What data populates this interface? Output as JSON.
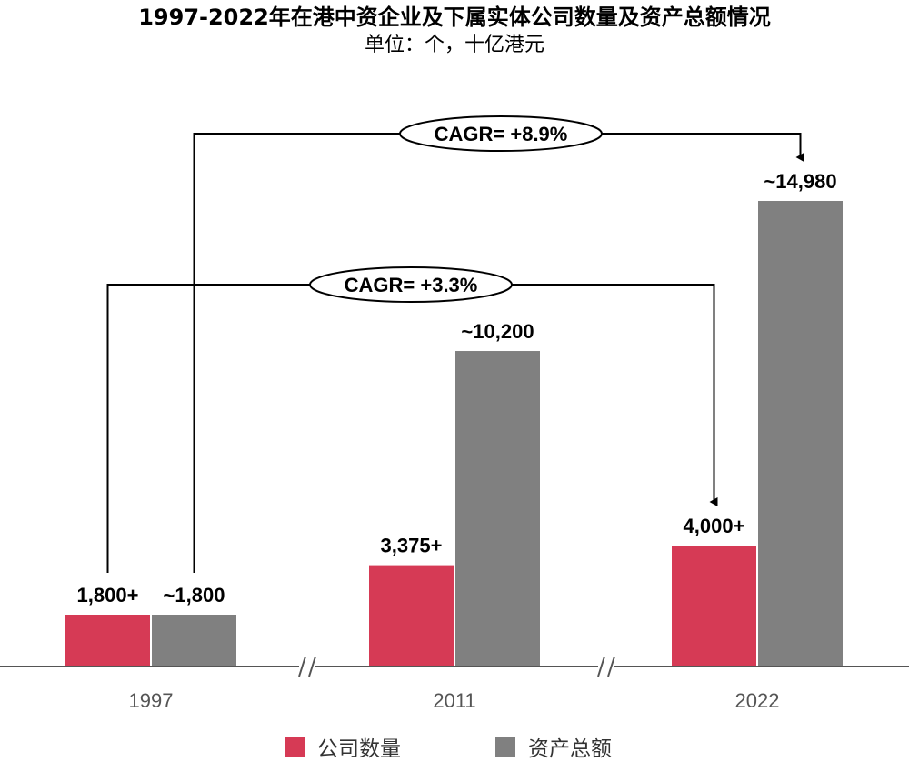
{
  "chart_data": {
    "type": "bar",
    "title": "1997-2022年在港中资企业及下属实体公司数量及资产总额情况",
    "subtitle": "单位：个，十亿港元",
    "categories": [
      "1997",
      "2011",
      "2022"
    ],
    "series": [
      {
        "name": "公司数量",
        "color": "#d63a55",
        "values": [
          1800,
          3375,
          4000
        ],
        "labels": [
          "1,800+",
          "3,375+",
          "4,000+"
        ]
      },
      {
        "name": "资产总额",
        "color": "#808080",
        "values": [
          1800,
          10200,
          14980
        ],
        "labels": [
          "~1,800",
          "~10,200",
          "~14,980"
        ]
      }
    ],
    "annotations": [
      {
        "text": "CAGR= +8.9%",
        "from": "1997",
        "to": "2022",
        "series": "资产总额"
      },
      {
        "text": "CAGR= +3.3%",
        "from": "1997",
        "to": "2022",
        "series": "公司数量"
      }
    ],
    "axis_breaks": true,
    "legend_position": "bottom",
    "grid": false
  }
}
